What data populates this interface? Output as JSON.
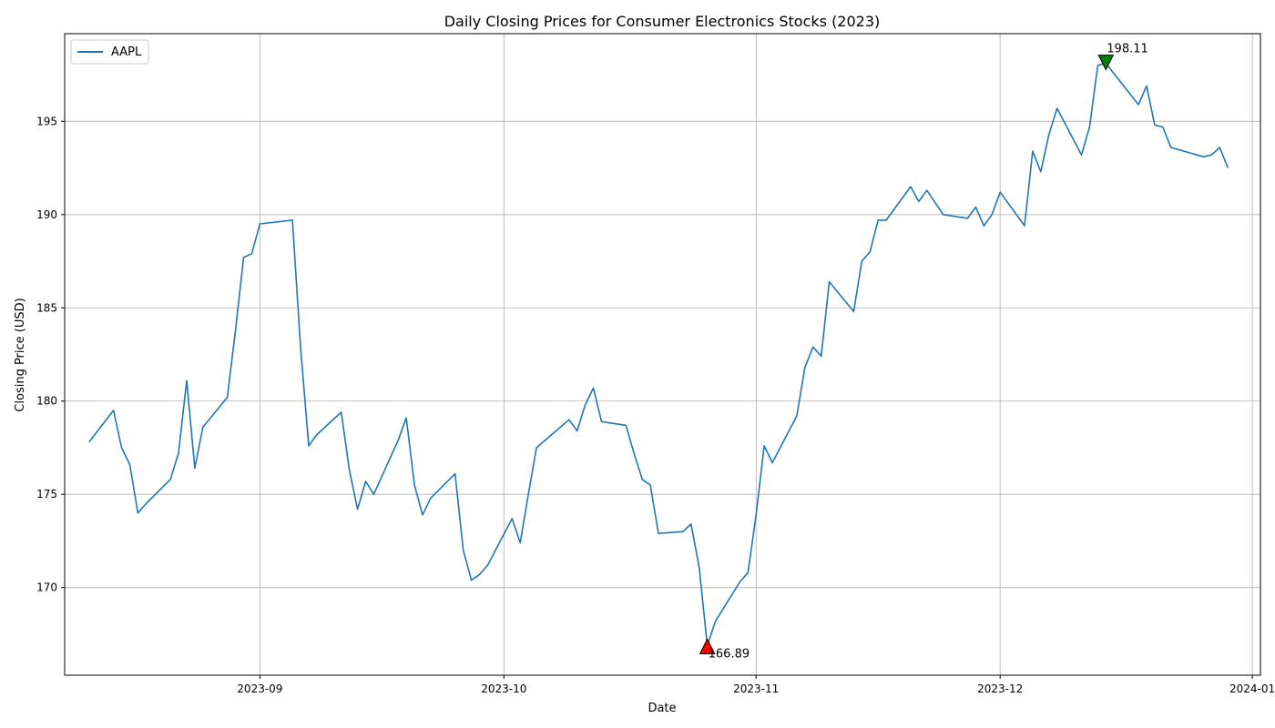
{
  "chart_data": {
    "type": "line",
    "title": "Daily Closing Prices for Consumer Electronics Stocks (2023)",
    "xlabel": "Date",
    "ylabel": "Closing Price (USD)",
    "grid": true,
    "legend": "upper-left",
    "xlim": [
      "2023-08-08",
      "2024-01-02"
    ],
    "ylim": [
      165.3,
      199.7
    ],
    "x_ticks": [
      "2023-09",
      "2023-10",
      "2023-11",
      "2023-12",
      "2024-01"
    ],
    "y_ticks": [
      170,
      175,
      180,
      185,
      190,
      195
    ],
    "series": [
      {
        "name": "AAPL",
        "color": "#1f77b4",
        "x": [
          "2023-08-11",
          "2023-08-14",
          "2023-08-15",
          "2023-08-16",
          "2023-08-17",
          "2023-08-18",
          "2023-08-21",
          "2023-08-22",
          "2023-08-23",
          "2023-08-24",
          "2023-08-25",
          "2023-08-28",
          "2023-08-29",
          "2023-08-30",
          "2023-08-31",
          "2023-09-01",
          "2023-09-05",
          "2023-09-06",
          "2023-09-07",
          "2023-09-08",
          "2023-09-11",
          "2023-09-12",
          "2023-09-13",
          "2023-09-14",
          "2023-09-15",
          "2023-09-18",
          "2023-09-19",
          "2023-09-20",
          "2023-09-21",
          "2023-09-22",
          "2023-09-25",
          "2023-09-26",
          "2023-09-27",
          "2023-09-28",
          "2023-09-29",
          "2023-10-02",
          "2023-10-03",
          "2023-10-04",
          "2023-10-05",
          "2023-10-09",
          "2023-10-10",
          "2023-10-11",
          "2023-10-12",
          "2023-10-13",
          "2023-10-16",
          "2023-10-17",
          "2023-10-18",
          "2023-10-19",
          "2023-10-20",
          "2023-10-23",
          "2023-10-24",
          "2023-10-25",
          "2023-10-26",
          "2023-10-27",
          "2023-10-30",
          "2023-10-31",
          "2023-11-01",
          "2023-11-02",
          "2023-11-03",
          "2023-11-06",
          "2023-11-07",
          "2023-11-08",
          "2023-11-09",
          "2023-11-10",
          "2023-11-13",
          "2023-11-14",
          "2023-11-15",
          "2023-11-16",
          "2023-11-17",
          "2023-11-20",
          "2023-11-21",
          "2023-11-22",
          "2023-11-24",
          "2023-11-27",
          "2023-11-28",
          "2023-11-29",
          "2023-11-30",
          "2023-12-01",
          "2023-12-04",
          "2023-12-05",
          "2023-12-06",
          "2023-12-07",
          "2023-12-08",
          "2023-12-11",
          "2023-12-12",
          "2023-12-13",
          "2023-12-14",
          "2023-12-18",
          "2023-12-19",
          "2023-12-20",
          "2023-12-21",
          "2023-12-22",
          "2023-12-26",
          "2023-12-27",
          "2023-12-28",
          "2023-12-29"
        ],
        "y": [
          177.8,
          179.5,
          177.5,
          176.6,
          174.0,
          174.5,
          175.8,
          177.2,
          181.1,
          176.4,
          178.6,
          180.2,
          183.8,
          187.7,
          187.9,
          189.5,
          189.7,
          182.9,
          177.6,
          178.2,
          179.4,
          176.3,
          174.2,
          175.7,
          175.0,
          177.9,
          179.1,
          175.5,
          173.9,
          174.8,
          176.1,
          172.0,
          170.4,
          170.7,
          171.2,
          173.7,
          172.4,
          175.0,
          177.5,
          179.0,
          178.4,
          179.8,
          180.7,
          178.9,
          178.7,
          177.2,
          175.8,
          175.5,
          172.9,
          173.0,
          173.4,
          171.1,
          166.89,
          168.2,
          170.3,
          170.8,
          173.9,
          177.6,
          176.7,
          179.2,
          181.8,
          182.9,
          182.4,
          186.4,
          184.8,
          187.5,
          188.0,
          189.7,
          189.7,
          191.5,
          190.7,
          191.3,
          190.0,
          189.8,
          190.4,
          189.4,
          190.0,
          191.2,
          189.4,
          193.4,
          192.3,
          194.3,
          195.7,
          193.2,
          194.7,
          198.0,
          198.11,
          195.9,
          196.9,
          194.8,
          194.7,
          193.6,
          193.1,
          193.2,
          193.6,
          192.5
        ]
      }
    ],
    "annotations": [
      {
        "label": "198.11",
        "x": "2023-12-14",
        "y": 198.11,
        "kind": "max",
        "color": "#008000"
      },
      {
        "label": "166.89",
        "x": "2023-10-26",
        "y": 166.89,
        "kind": "min",
        "color": "#ff0000"
      }
    ]
  }
}
